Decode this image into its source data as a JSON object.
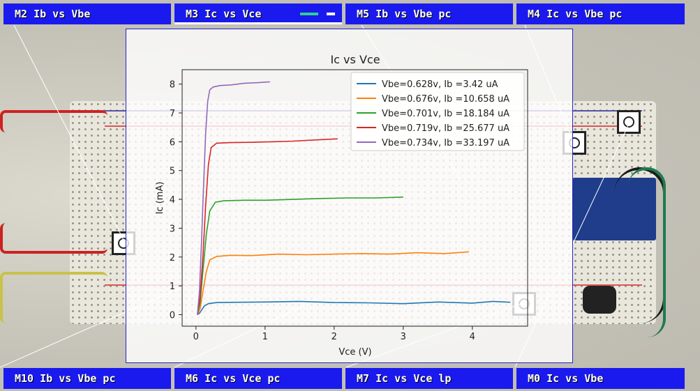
{
  "tabs_top": [
    {
      "label": "M2  Ib vs Vbe"
    },
    {
      "label": "M3  Ic vs Vce"
    },
    {
      "label": "M5  Ib vs Vbe pc"
    },
    {
      "label": "M4  Ic vs Vbe pc"
    }
  ],
  "tabs_bottom": [
    {
      "label": "M10  Ib vs Vbe pc"
    },
    {
      "label": "M6  Ic vs Vce pc"
    },
    {
      "label": "M7  Ic vs Vce lp"
    },
    {
      "label": "M0  Ic vs Vbe"
    }
  ],
  "colors": {
    "tab": "#1a1aee",
    "accent_green": "#2fcf8f"
  },
  "chart_data": {
    "type": "line",
    "title": "Ic vs Vce",
    "xlabel": "Vce (V)",
    "ylabel": "Ic (mA)",
    "xlim": [
      -0.2,
      4.8
    ],
    "ylim": [
      -0.4,
      8.5
    ],
    "xticks": [
      0,
      1,
      2,
      3,
      4
    ],
    "yticks": [
      0,
      1,
      2,
      3,
      4,
      5,
      6,
      7,
      8
    ],
    "legend_position": "top-right",
    "grid": false,
    "series": [
      {
        "name": "Vbe=0.628v, Ib =3.42 uA",
        "color": "#1f77b4",
        "x": [
          0.02,
          0.05,
          0.08,
          0.12,
          0.18,
          0.3,
          0.6,
          1.0,
          1.5,
          2.0,
          2.5,
          3.0,
          3.5,
          4.0,
          4.3,
          4.55
        ],
        "y": [
          0.0,
          0.05,
          0.15,
          0.3,
          0.38,
          0.42,
          0.43,
          0.44,
          0.46,
          0.42,
          0.41,
          0.38,
          0.44,
          0.4,
          0.46,
          0.43
        ]
      },
      {
        "name": "Vbe=0.676v, Ib =10.658 uA",
        "color": "#ff7f0e",
        "x": [
          0.02,
          0.06,
          0.1,
          0.15,
          0.2,
          0.3,
          0.5,
          0.8,
          1.2,
          1.6,
          2.0,
          2.4,
          2.8,
          3.2,
          3.6,
          3.95
        ],
        "y": [
          0.0,
          0.2,
          0.8,
          1.5,
          1.9,
          2.02,
          2.06,
          2.05,
          2.1,
          2.08,
          2.1,
          2.12,
          2.1,
          2.15,
          2.12,
          2.18
        ]
      },
      {
        "name": "Vbe=0.701v, Ib =18.184 uA",
        "color": "#2ca02c",
        "x": [
          0.02,
          0.06,
          0.1,
          0.15,
          0.2,
          0.28,
          0.4,
          0.7,
          1.0,
          1.4,
          1.8,
          2.2,
          2.6,
          3.0
        ],
        "y": [
          0.0,
          0.4,
          1.5,
          2.8,
          3.6,
          3.9,
          3.95,
          3.97,
          3.97,
          4.0,
          4.03,
          4.05,
          4.05,
          4.08
        ]
      },
      {
        "name": "Vbe=0.719v, Ib =25.677 uA",
        "color": "#d62728",
        "x": [
          0.02,
          0.06,
          0.1,
          0.14,
          0.18,
          0.22,
          0.3,
          0.5,
          0.8,
          1.1,
          1.4,
          1.7,
          2.05
        ],
        "y": [
          0.0,
          0.6,
          2.0,
          3.8,
          5.2,
          5.8,
          5.95,
          5.97,
          5.98,
          6.0,
          6.02,
          6.06,
          6.1
        ]
      },
      {
        "name": "Vbe=0.734v, Ib =33.197 uA",
        "color": "#9467bd",
        "x": [
          0.02,
          0.05,
          0.08,
          0.11,
          0.14,
          0.17,
          0.2,
          0.25,
          0.35,
          0.5,
          0.7,
          0.9,
          1.07
        ],
        "y": [
          0.0,
          0.8,
          2.5,
          4.5,
          6.3,
          7.4,
          7.8,
          7.9,
          7.95,
          7.97,
          8.03,
          8.05,
          8.08
        ]
      }
    ]
  }
}
